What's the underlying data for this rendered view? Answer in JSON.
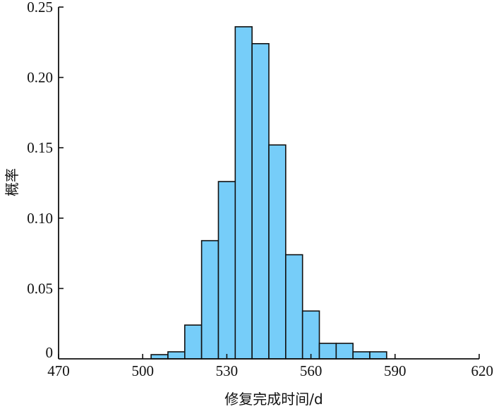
{
  "chart_data": {
    "type": "bar",
    "subtype": "histogram",
    "xlabel": "修复完成时间/d",
    "ylabel": "概率",
    "xlim": [
      470,
      620
    ],
    "ylim": [
      0,
      0.25
    ],
    "x_ticks": [
      "470",
      "500",
      "530",
      "560",
      "590",
      "620"
    ],
    "x_tick_values": [
      470,
      500,
      530,
      560,
      590,
      620
    ],
    "y_ticks": [
      "0",
      "0.05",
      "0.10",
      "0.15",
      "0.20",
      "0.25"
    ],
    "y_tick_values": [
      0,
      0.05,
      0.1,
      0.15,
      0.2,
      0.25
    ],
    "bin_width": 6,
    "bins": [
      {
        "x0": 503,
        "x1": 509,
        "value": 0.003
      },
      {
        "x0": 509,
        "x1": 515,
        "value": 0.005
      },
      {
        "x0": 515,
        "x1": 521,
        "value": 0.024
      },
      {
        "x0": 521,
        "x1": 527,
        "value": 0.084
      },
      {
        "x0": 527,
        "x1": 533,
        "value": 0.126
      },
      {
        "x0": 533,
        "x1": 539,
        "value": 0.236
      },
      {
        "x0": 539,
        "x1": 545,
        "value": 0.224
      },
      {
        "x0": 545,
        "x1": 551,
        "value": 0.152
      },
      {
        "x0": 551,
        "x1": 557,
        "value": 0.074
      },
      {
        "x0": 557,
        "x1": 563,
        "value": 0.034
      },
      {
        "x0": 563,
        "x1": 569,
        "value": 0.011
      },
      {
        "x0": 569,
        "x1": 575,
        "value": 0.011
      },
      {
        "x0": 575,
        "x1": 581,
        "value": 0.005
      },
      {
        "x0": 581,
        "x1": 587,
        "value": 0.005
      }
    ],
    "bar_color": "#76cdf9",
    "grid": false,
    "legend": "none"
  }
}
